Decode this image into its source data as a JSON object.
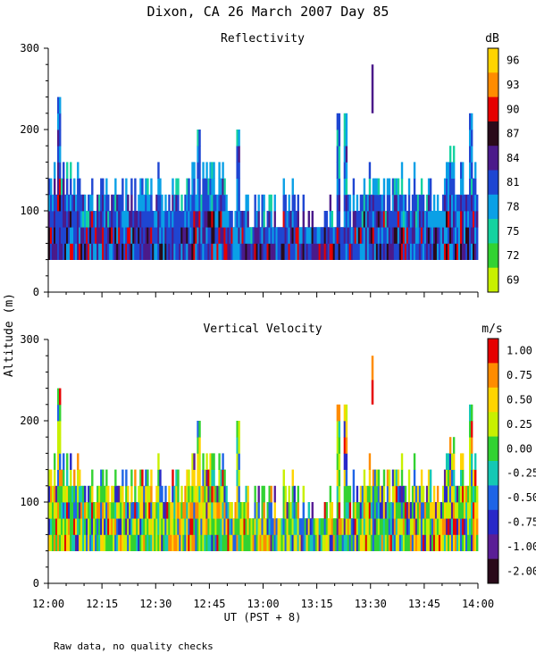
{
  "figure": {
    "title": "Dixon, CA 26 March 2007  Day  85",
    "ylabel": "Altitude (m)",
    "xlabel": "UT  (PST + 8)",
    "footnote": "Raw data, no quality checks"
  },
  "chart_data": [
    {
      "type": "heatmap",
      "title": "Reflectivity",
      "xlabel": "UT  (PST + 8)",
      "ylabel": "Altitude (m)",
      "xlim_minutes_after_1200": [
        0,
        120
      ],
      "ylim": [
        0,
        300
      ],
      "y_ticks": [
        0,
        100,
        200,
        300
      ],
      "y_tick_labels": [
        "0",
        "100",
        "200",
        "300"
      ],
      "x_ticks": [
        0,
        15,
        30,
        45,
        60,
        75,
        90,
        105,
        120
      ],
      "x_tick_labels": [
        "12:00",
        "12:15",
        "12:30",
        "12:45",
        "13:00",
        "13:15",
        "13:30",
        "13:45",
        "14:00"
      ],
      "colorbar": {
        "unit": "dB",
        "labels": [
          "96",
          "93",
          "90",
          "87",
          "84",
          "81",
          "78",
          "75",
          "72",
          "69"
        ],
        "colors": [
          "#ffd400",
          "#ff8c00",
          "#e60000",
          "#2a0a1a",
          "#4b1a8a",
          "#1e46d2",
          "#0aa0e6",
          "#14d2a0",
          "#32d232",
          "#c8f000"
        ]
      },
      "profile": {
        "echo_base_m": 40,
        "typical_top_m": [
          100,
          180
        ],
        "segments": [
          {
            "t": [
              0,
              10
            ],
            "top": 160
          },
          {
            "t": [
              10,
              30
            ],
            "top": 140
          },
          {
            "t": [
              30,
              40
            ],
            "top": 140
          },
          {
            "t": [
              40,
              50
            ],
            "top": 160
          },
          {
            "t": [
              50,
              60
            ],
            "top": 120
          },
          {
            "t": [
              60,
              70
            ],
            "top": 120
          },
          {
            "t": [
              70,
              80
            ],
            "top": 100
          },
          {
            "t": [
              80,
              85
            ],
            "top": 120
          },
          {
            "t": [
              85,
              100
            ],
            "top": 140
          },
          {
            "t": [
              100,
              110
            ],
            "top": 140
          },
          {
            "t": [
              110,
              120
            ],
            "top": 160
          }
        ],
        "spikes": [
          {
            "t": 3,
            "top": 240
          },
          {
            "t": 42,
            "top": 200
          },
          {
            "t": 53,
            "top": 200
          },
          {
            "t": 81,
            "top": 220
          },
          {
            "t": 83,
            "top": 220
          },
          {
            "t": 118,
            "top": 220
          }
        ],
        "isolated_echo": {
          "t": 90.5,
          "range": [
            220,
            280
          ]
        }
      }
    },
    {
      "type": "heatmap",
      "title": "Vertical Velocity",
      "xlabel": "UT  (PST + 8)",
      "ylabel": "Altitude (m)",
      "xlim_minutes_after_1200": [
        0,
        120
      ],
      "ylim": [
        0,
        300
      ],
      "y_ticks": [
        0,
        100,
        200,
        300
      ],
      "y_tick_labels": [
        "0",
        "100",
        "200",
        "300"
      ],
      "x_ticks": [
        0,
        15,
        30,
        45,
        60,
        75,
        90,
        105,
        120
      ],
      "x_tick_labels": [
        "12:00",
        "12:15",
        "12:30",
        "12:45",
        "13:00",
        "13:15",
        "13:30",
        "13:45",
        "14:00"
      ],
      "colorbar": {
        "unit": "m/s",
        "labels": [
          "1.00",
          "0.75",
          "0.50",
          "0.25",
          "0.00",
          "-0.25",
          "-0.50",
          "-0.75",
          "-1.00",
          "-2.00"
        ],
        "colors": [
          "#e60000",
          "#ff8c00",
          "#ffd400",
          "#c8f000",
          "#32d232",
          "#14c8b4",
          "#1e64e6",
          "#2828c8",
          "#5a1e96",
          "#2a0a1a"
        ]
      },
      "profile": {
        "echo_base_m": 40,
        "same_coverage_as": "Reflectivity"
      }
    }
  ]
}
